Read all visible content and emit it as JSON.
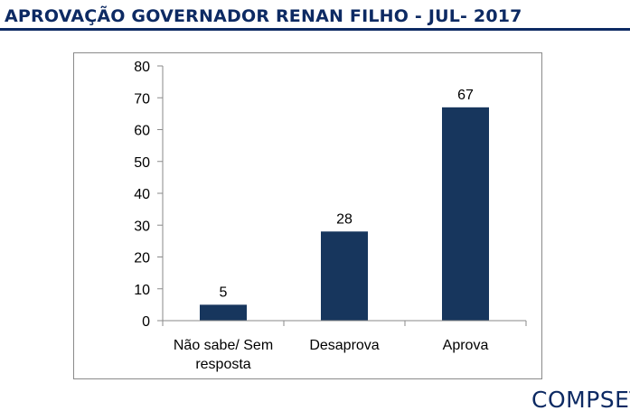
{
  "header": {
    "title": "APROVAÇÃO GOVERNADOR RENAN FILHO -  JUL- 2017"
  },
  "brand": {
    "logo_text": "COMPSET"
  },
  "colors": {
    "bar": "#17365d",
    "title": "#0d2a63"
  },
  "chart_data": {
    "type": "bar",
    "categories": [
      [
        "Não sabe/ Sem",
        "resposta"
      ],
      [
        "Desaprova"
      ],
      [
        "Aprova"
      ]
    ],
    "values": [
      5,
      28,
      67
    ],
    "data_labels": [
      "5",
      "28",
      "67"
    ],
    "title": "",
    "xlabel": "",
    "ylabel": "",
    "ylim": [
      0,
      80
    ],
    "yticks": [
      0,
      10,
      20,
      30,
      40,
      50,
      60,
      70,
      80
    ],
    "grid": false,
    "legend": "none"
  }
}
